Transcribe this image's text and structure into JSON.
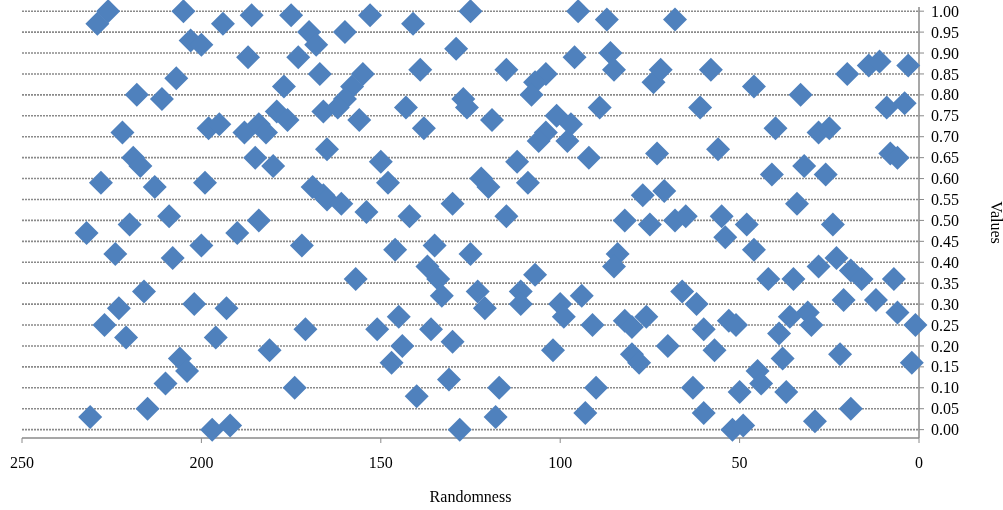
{
  "chart_data": {
    "type": "scatter",
    "xlabel": "Randomness",
    "ylabel": "Values",
    "xlim": [
      250,
      0
    ],
    "xticks": [
      250,
      200,
      150,
      100,
      50,
      0
    ],
    "ylim": [
      -0.02,
      1.01
    ],
    "yticks": [
      {
        "value": 0,
        "label": "0.00"
      },
      {
        "value": 0.05,
        "label": "0.05"
      },
      {
        "value": 0.1,
        "label": "0.10"
      },
      {
        "value": 0.15,
        "label": "0.15"
      },
      {
        "value": 0.2,
        "label": "0.20"
      },
      {
        "value": 0.25,
        "label": "0.25"
      },
      {
        "value": 0.3,
        "label": "0.30"
      },
      {
        "value": 0.35,
        "label": "0.35"
      },
      {
        "value": 0.4,
        "label": "0.40"
      },
      {
        "value": 0.45,
        "label": "0.45"
      },
      {
        "value": 0.5,
        "label": "0.50"
      },
      {
        "value": 0.55,
        "label": "0.55"
      },
      {
        "value": 0.6,
        "label": "0.60"
      },
      {
        "value": 0.65,
        "label": "0.65"
      },
      {
        "value": 0.7,
        "label": "0.70"
      },
      {
        "value": 0.75,
        "label": "0.75"
      },
      {
        "value": 0.8,
        "label": "0.80"
      },
      {
        "value": 0.85,
        "label": "0.85"
      },
      {
        "value": 0.9,
        "label": "0.90"
      },
      {
        "value": 0.95,
        "label": "0.95"
      },
      {
        "value": 1,
        "label": "1.00"
      }
    ],
    "grid": "y",
    "marker": "diamond",
    "series": [
      {
        "color": "#4f81bd",
        "x": [
          226,
          229,
          205,
          194,
          186,
          175,
          203,
          200,
          170,
          168,
          187,
          173,
          167,
          207,
          177,
          218,
          211,
          179,
          176,
          166,
          198,
          195,
          188,
          184,
          182,
          222,
          165,
          219,
          217,
          185,
          180,
          228,
          213,
          199,
          169,
          166,
          209,
          184,
          220,
          232,
          190,
          200,
          172,
          224,
          208,
          216,
          202,
          193,
          223,
          227,
          221,
          171,
          196,
          181,
          206,
          204,
          210,
          174,
          215,
          231,
          197,
          192,
          153,
          125,
          95,
          87,
          160,
          141,
          129,
          96,
          86,
          85,
          155,
          158,
          139,
          115,
          104,
          107,
          108,
          160,
          162,
          156,
          143,
          127,
          126,
          119,
          138,
          101,
          97,
          104,
          98,
          106,
          89,
          150,
          148,
          112,
          92,
          122,
          120,
          109,
          165,
          161,
          154,
          130,
          142,
          115,
          82,
          146,
          135,
          125,
          84,
          85,
          157,
          137,
          134,
          133,
          123,
          121,
          107,
          111,
          111,
          100,
          99,
          94,
          91,
          82,
          80,
          76,
          145,
          151,
          136,
          144,
          147,
          130,
          102,
          80,
          78,
          131,
          117,
          90,
          140,
          118,
          93,
          128,
          68,
          74,
          72,
          58,
          46,
          33,
          61,
          20,
          14,
          11,
          3,
          9,
          4,
          40,
          28,
          25,
          73,
          56,
          8,
          6,
          41,
          32,
          26,
          77,
          71,
          34,
          75,
          68,
          65,
          55,
          54,
          48,
          46,
          24,
          66,
          62,
          70,
          60,
          57,
          53,
          51,
          42,
          35,
          28,
          23,
          19,
          16,
          7,
          21,
          12,
          36,
          31,
          30,
          6,
          1,
          39,
          38,
          22,
          2,
          63,
          50,
          45,
          44,
          37,
          60,
          19,
          29,
          52,
          49
        ],
        "values": [
          1.0,
          0.97,
          1.0,
          0.97,
          0.99,
          0.99,
          0.93,
          0.92,
          0.95,
          0.92,
          0.89,
          0.89,
          0.85,
          0.84,
          0.82,
          0.8,
          0.79,
          0.76,
          0.74,
          0.76,
          0.72,
          0.73,
          0.71,
          0.73,
          0.71,
          0.71,
          0.67,
          0.65,
          0.63,
          0.65,
          0.63,
          0.59,
          0.58,
          0.59,
          0.58,
          0.56,
          0.51,
          0.5,
          0.49,
          0.47,
          0.47,
          0.44,
          0.44,
          0.42,
          0.41,
          0.33,
          0.3,
          0.29,
          0.29,
          0.25,
          0.22,
          0.24,
          0.22,
          0.19,
          0.17,
          0.14,
          0.11,
          0.1,
          0.05,
          0.03,
          0.0,
          0.01,
          0.99,
          1.0,
          1.0,
          0.98,
          0.95,
          0.97,
          0.91,
          0.89,
          0.9,
          0.86,
          0.85,
          0.82,
          0.86,
          0.86,
          0.85,
          0.83,
          0.8,
          0.79,
          0.77,
          0.74,
          0.77,
          0.79,
          0.77,
          0.74,
          0.72,
          0.75,
          0.73,
          0.71,
          0.69,
          0.69,
          0.77,
          0.64,
          0.59,
          0.64,
          0.65,
          0.6,
          0.58,
          0.59,
          0.55,
          0.54,
          0.52,
          0.54,
          0.51,
          0.51,
          0.5,
          0.43,
          0.44,
          0.42,
          0.42,
          0.39,
          0.36,
          0.39,
          0.36,
          0.32,
          0.33,
          0.29,
          0.37,
          0.33,
          0.3,
          0.3,
          0.27,
          0.32,
          0.25,
          0.26,
          0.245,
          0.27,
          0.27,
          0.24,
          0.24,
          0.2,
          0.16,
          0.21,
          0.19,
          0.18,
          0.16,
          0.12,
          0.1,
          0.1,
          0.08,
          0.03,
          0.04,
          0.0,
          0.98,
          0.83,
          0.86,
          0.86,
          0.82,
          0.8,
          0.77,
          0.85,
          0.87,
          0.88,
          0.87,
          0.77,
          0.78,
          0.72,
          0.71,
          0.72,
          0.66,
          0.67,
          0.66,
          0.65,
          0.61,
          0.63,
          0.61,
          0.56,
          0.57,
          0.54,
          0.49,
          0.5,
          0.51,
          0.51,
          0.46,
          0.49,
          0.43,
          0.49,
          0.33,
          0.3,
          0.2,
          0.24,
          0.19,
          0.26,
          0.25,
          0.36,
          0.36,
          0.39,
          0.41,
          0.38,
          0.36,
          0.36,
          0.31,
          0.31,
          0.27,
          0.28,
          0.25,
          0.28,
          0.25,
          0.23,
          0.17,
          0.18,
          0.16,
          0.1,
          0.09,
          0.14,
          0.11,
          0.09,
          0.04,
          0.05,
          0.02,
          0.0,
          0.01
        ]
      }
    ]
  }
}
